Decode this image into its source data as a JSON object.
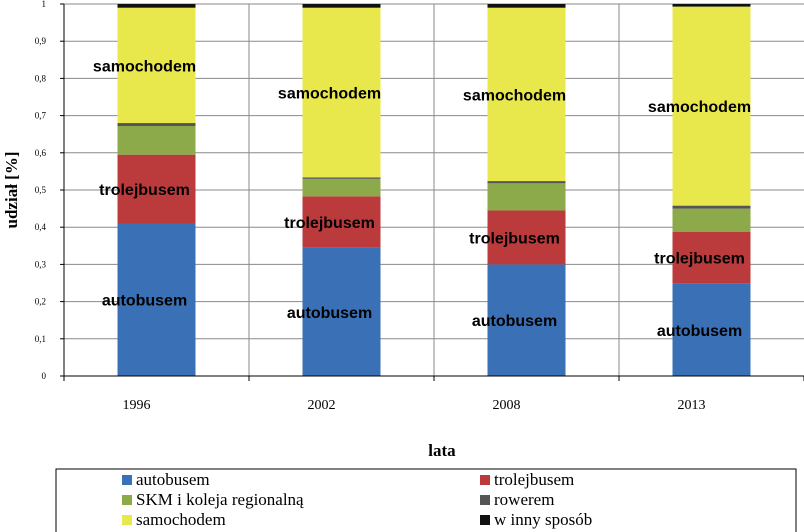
{
  "chart_data": {
    "type": "bar",
    "stacked": true,
    "categories": [
      "1996",
      "2002",
      "2008",
      "2013"
    ],
    "series": [
      {
        "name": "autobusem",
        "color": "#3a70b5",
        "values": [
          0.41,
          0.345,
          0.3,
          0.248
        ]
      },
      {
        "name": "trolejbusem",
        "color": "#bb3a3c",
        "values": [
          0.185,
          0.138,
          0.145,
          0.14
        ]
      },
      {
        "name": "SKM i koleja regionalną",
        "color": "#8caa4a",
        "values": [
          0.077,
          0.047,
          0.073,
          0.062
        ]
      },
      {
        "name": "rowerem",
        "color": "#555555",
        "values": [
          0.008,
          0.004,
          0.006,
          0.008
        ]
      },
      {
        "name": "samochodem",
        "color": "#e8e84c",
        "values": [
          0.31,
          0.456,
          0.466,
          0.535
        ]
      },
      {
        "name": "w inny sposób",
        "color": "#111111",
        "values": [
          0.01,
          0.01,
          0.01,
          0.007
        ]
      }
    ],
    "segment_labels": [
      {
        "series": "autobusem",
        "labels": [
          "autobusem",
          "autobusem",
          "autobusem",
          "autobusem"
        ]
      },
      {
        "series": "trolejbusem",
        "labels": [
          "trolejbusem",
          "trolejbusem",
          "trolejbusem",
          "trolejbusem"
        ]
      },
      {
        "series": "samochodem",
        "labels": [
          "samochodem",
          "samochodem",
          "samochodem",
          "samochodem"
        ]
      }
    ],
    "yticks": [
      "0",
      "0,1",
      "0,2",
      "0,3",
      "0,4",
      "0,5",
      "0,6",
      "0,7",
      "0,8",
      "0,9",
      "1"
    ],
    "ylim": [
      0,
      1
    ],
    "ylabel": "udział [%]",
    "xlabel": "lata",
    "grid": true,
    "legend_position": "bottom"
  }
}
